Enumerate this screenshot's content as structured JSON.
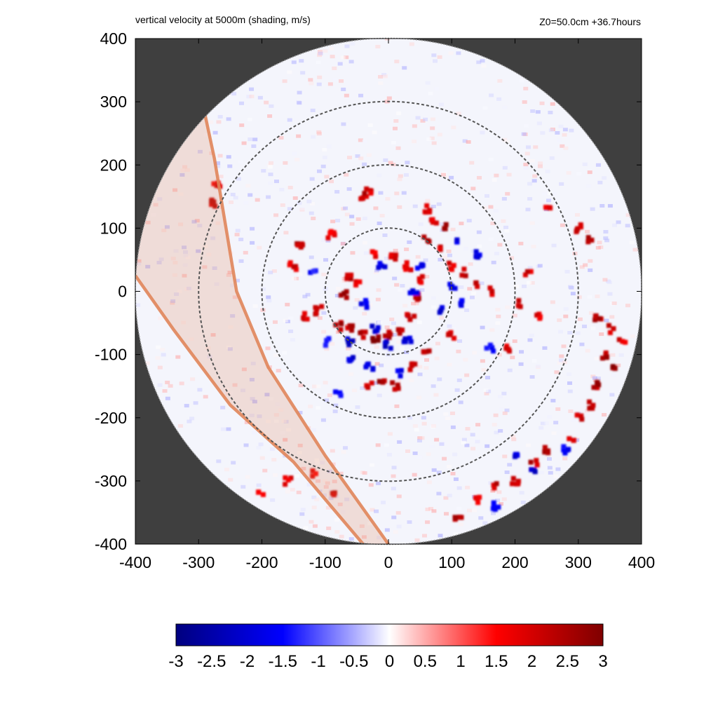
{
  "chart_data": {
    "type": "heatmap",
    "title": "vertical velocity at 5000m (shading, m/s)",
    "annotation_right": "Z0=50.0cm  +36.7hours",
    "xlim": [
      -400,
      400
    ],
    "ylim": [
      -400,
      400
    ],
    "x_ticks": [
      -400,
      -300,
      -200,
      -100,
      0,
      100,
      200,
      300,
      400
    ],
    "y_ticks": [
      -400,
      -300,
      -200,
      -100,
      0,
      100,
      200,
      300,
      400
    ],
    "x_tick_labels": [
      "-400",
      "-300",
      "-200",
      "-100",
      "0",
      "100",
      "200",
      "300",
      "400"
    ],
    "y_tick_labels": [
      "-400",
      "-300",
      "-200",
      "-100",
      "0",
      "100",
      "200",
      "300",
      "400"
    ],
    "domain_radius": 400,
    "range_rings": [
      100,
      200,
      300
    ],
    "colorbar": {
      "min": -3,
      "max": 3,
      "ticks": [
        -3,
        -2.5,
        -2,
        -1.5,
        -1,
        -0.5,
        0,
        0.5,
        1,
        1.5,
        2,
        2.5,
        3
      ],
      "tick_labels": [
        "-3",
        "-2.5",
        "-2",
        "-1.5",
        "-1",
        "-0.5",
        "0",
        "0.5",
        "1",
        "1.5",
        "2",
        "2.5",
        "3"
      ],
      "colors": [
        "#00007f",
        "#0000ff",
        "#ffffff",
        "#ff0000",
        "#7f0000"
      ]
    },
    "land_band": {
      "color": "#e0855a",
      "outer_edge": [
        [
          -290,
          280
        ],
        [
          -275,
          210
        ],
        [
          -240,
          0
        ],
        [
          -190,
          -120
        ],
        [
          -100,
          -260
        ],
        [
          0,
          -400
        ]
      ],
      "inner_edge": [
        [
          -400,
          25
        ],
        [
          -340,
          -60
        ],
        [
          -250,
          -180
        ],
        [
          -150,
          -270
        ],
        [
          -40,
          -400
        ]
      ]
    },
    "features": {
      "updrafts": [
        [
          -80,
          -55,
          2.8
        ],
        [
          -60,
          -60,
          2.6
        ],
        [
          -40,
          -70,
          2.9
        ],
        [
          -20,
          -75,
          3.0
        ],
        [
          0,
          -70,
          2.7
        ],
        [
          20,
          -65,
          2.5
        ],
        [
          35,
          -40,
          2.4
        ],
        [
          45,
          -10,
          2.6
        ],
        [
          50,
          20,
          2.3
        ],
        [
          30,
          40,
          2.2
        ],
        [
          10,
          55,
          2.5
        ],
        [
          -20,
          60,
          2.1
        ],
        [
          -60,
          20,
          2.6
        ],
        [
          -70,
          -5,
          2.8
        ],
        [
          -50,
          10,
          2.0
        ],
        [
          60,
          80,
          2.8
        ],
        [
          80,
          70,
          2.5
        ],
        [
          100,
          40,
          2.2
        ],
        [
          120,
          30,
          2.4
        ],
        [
          140,
          10,
          2.6
        ],
        [
          160,
          0,
          2.3
        ],
        [
          90,
          100,
          2.9
        ],
        [
          70,
          110,
          2.1
        ],
        [
          -40,
          150,
          2.6
        ],
        [
          -30,
          160,
          2.4
        ],
        [
          -140,
          70,
          2.8
        ],
        [
          -150,
          40,
          2.3
        ],
        [
          -130,
          -40,
          2.5
        ],
        [
          -110,
          -30,
          2.7
        ],
        [
          -10,
          -140,
          2.8
        ],
        [
          10,
          -150,
          2.6
        ],
        [
          -30,
          -150,
          2.5
        ],
        [
          40,
          -120,
          2.4
        ],
        [
          60,
          -100,
          2.9
        ],
        [
          100,
          -70,
          2.3
        ],
        [
          190,
          -90,
          2.2
        ],
        [
          210,
          -20,
          2.6
        ],
        [
          220,
          30,
          2.4
        ],
        [
          240,
          -40,
          2.1
        ],
        [
          250,
          130,
          2.0
        ],
        [
          300,
          100,
          2.4
        ],
        [
          320,
          80,
          2.6
        ],
        [
          330,
          -40,
          2.7
        ],
        [
          340,
          -100,
          2.8
        ],
        [
          360,
          -120,
          3.0
        ],
        [
          330,
          -150,
          2.9
        ],
        [
          320,
          -180,
          2.5
        ],
        [
          300,
          -200,
          2.3
        ],
        [
          250,
          -250,
          2.8
        ],
        [
          230,
          -270,
          2.6
        ],
        [
          200,
          -300,
          2.4
        ],
        [
          170,
          -310,
          2.5
        ],
        [
          140,
          -330,
          2.1
        ],
        [
          110,
          -360,
          2.6
        ],
        [
          350,
          -60,
          2.4
        ],
        [
          370,
          -80,
          2.2
        ],
        [
          290,
          -230,
          2.4
        ],
        [
          -280,
          140,
          2.3
        ],
        [
          -270,
          170,
          2.1
        ],
        [
          -120,
          -290,
          2.0
        ],
        [
          -160,
          -300,
          2.2
        ],
        [
          -200,
          -320,
          2.0
        ],
        [
          -90,
          -320,
          2.3
        ],
        [
          60,
          130,
          2.4
        ],
        [
          -90,
          90,
          2.1
        ]
      ],
      "downdrafts": [
        [
          -60,
          -80,
          -2.4
        ],
        [
          -20,
          -60,
          -2.2
        ],
        [
          0,
          -85,
          -2.6
        ],
        [
          30,
          -80,
          -2.3
        ],
        [
          40,
          0,
          -2.1
        ],
        [
          50,
          40,
          -2.0
        ],
        [
          -10,
          40,
          -2.2
        ],
        [
          -40,
          -20,
          -1.9
        ],
        [
          80,
          -30,
          -2.3
        ],
        [
          100,
          10,
          -2.0
        ],
        [
          120,
          -20,
          -2.1
        ],
        [
          -30,
          -120,
          -2.4
        ],
        [
          -60,
          -110,
          -2.2
        ],
        [
          20,
          -130,
          -2.0
        ],
        [
          -100,
          -80,
          -1.8
        ],
        [
          110,
          80,
          -2.0
        ],
        [
          140,
          60,
          -2.1
        ],
        [
          230,
          -280,
          -2.4
        ],
        [
          200,
          -260,
          -2.2
        ],
        [
          280,
          -250,
          -2.0
        ],
        [
          170,
          -340,
          -2.0
        ],
        [
          -80,
          -160,
          -1.8
        ],
        [
          160,
          -90,
          -1.9
        ],
        [
          -120,
          30,
          -1.7
        ]
      ]
    }
  }
}
